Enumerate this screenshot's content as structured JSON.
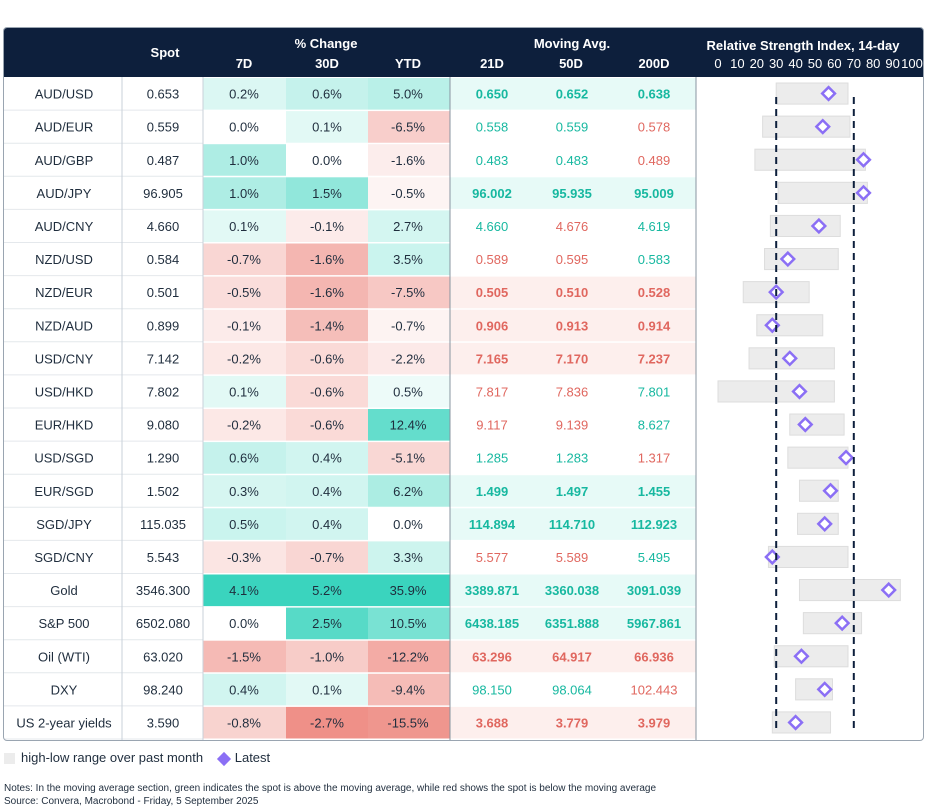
{
  "header": {
    "spot": "Spot",
    "pct_change": "% Change",
    "moving_avg": "Moving Avg.",
    "rsi_title": "Relative Strength Index, 14-day",
    "sub": [
      "7D",
      "30D",
      "YTD",
      "21D",
      "50D",
      "200D"
    ],
    "rsi_ticks": [
      "0",
      "10",
      "20",
      "30",
      "40",
      "50",
      "60",
      "70",
      "80",
      "90",
      "100"
    ]
  },
  "legend": {
    "range": "high-low range over past month",
    "latest": "Latest"
  },
  "notes": {
    "line1": "Notes: In the moving average section, green indicates the spot is above the moving average, while red shows the spot is below the moving average",
    "line2": "Source: Convera, Macrobond - Friday, 5 September 2025"
  },
  "colors": {
    "header": "#0d1f3c",
    "green_text": "#17b8a0",
    "red_text": "#e0675f",
    "marker": "#8b6ff5",
    "range_bar": "#ececec"
  },
  "chart_data": {
    "type": "table",
    "columns": [
      "Spot",
      "7D",
      "30D",
      "YTD",
      "21D",
      "50D",
      "200D",
      "RSI"
    ],
    "rsi_reference_lines": [
      30,
      70
    ],
    "rows": [
      {
        "name": "AUD/USD",
        "spot": "0.653",
        "d7": "0.2%",
        "d30": "0.6%",
        "ytd": "5.0%",
        "m21": "0.650",
        "m50": "0.652",
        "m200": "0.638",
        "rsi": 57,
        "lo": 30,
        "hi": 67
      },
      {
        "name": "AUD/EUR",
        "spot": "0.559",
        "d7": "0.0%",
        "d30": "0.1%",
        "ytd": "-6.5%",
        "m21": "0.558",
        "m50": "0.559",
        "m200": "0.578",
        "rsi": 54,
        "lo": 23,
        "hi": 68
      },
      {
        "name": "AUD/GBP",
        "spot": "0.487",
        "d7": "1.0%",
        "d30": "0.0%",
        "ytd": "-1.6%",
        "m21": "0.483",
        "m50": "0.483",
        "m200": "0.489",
        "rsi": 75,
        "lo": 19,
        "hi": 76
      },
      {
        "name": "AUD/JPY",
        "spot": "96.905",
        "d7": "1.0%",
        "d30": "1.5%",
        "ytd": "-0.5%",
        "m21": "96.002",
        "m50": "95.935",
        "m200": "95.009",
        "rsi": 75,
        "lo": 31,
        "hi": 77
      },
      {
        "name": "AUD/CNY",
        "spot": "4.660",
        "d7": "0.1%",
        "d30": "-0.1%",
        "ytd": "2.7%",
        "m21": "4.660",
        "m50": "4.676",
        "m200": "4.619",
        "rsi": 52,
        "lo": 27,
        "hi": 63
      },
      {
        "name": "NZD/USD",
        "spot": "0.584",
        "d7": "-0.7%",
        "d30": "-1.6%",
        "ytd": "3.5%",
        "m21": "0.589",
        "m50": "0.595",
        "m200": "0.583",
        "rsi": 36,
        "lo": 24,
        "hi": 62
      },
      {
        "name": "NZD/EUR",
        "spot": "0.501",
        "d7": "-0.5%",
        "d30": "-1.6%",
        "ytd": "-7.5%",
        "m21": "0.505",
        "m50": "0.510",
        "m200": "0.528",
        "rsi": 30,
        "lo": 13,
        "hi": 47
      },
      {
        "name": "NZD/AUD",
        "spot": "0.899",
        "d7": "-0.1%",
        "d30": "-1.4%",
        "ytd": "-0.7%",
        "m21": "0.906",
        "m50": "0.913",
        "m200": "0.914",
        "rsi": 28,
        "lo": 20,
        "hi": 54
      },
      {
        "name": "USD/CNY",
        "spot": "7.142",
        "d7": "-0.2%",
        "d30": "-0.6%",
        "ytd": "-2.2%",
        "m21": "7.165",
        "m50": "7.170",
        "m200": "7.237",
        "rsi": 37,
        "lo": 16,
        "hi": 60
      },
      {
        "name": "USD/HKD",
        "spot": "7.802",
        "d7": "0.1%",
        "d30": "-0.6%",
        "ytd": "0.5%",
        "m21": "7.817",
        "m50": "7.836",
        "m200": "7.801",
        "rsi": 42,
        "lo": 0,
        "hi": 60
      },
      {
        "name": "EUR/HKD",
        "spot": "9.080",
        "d7": "-0.2%",
        "d30": "-0.6%",
        "ytd": "12.4%",
        "m21": "9.117",
        "m50": "9.139",
        "m200": "8.627",
        "rsi": 45,
        "lo": 37,
        "hi": 65
      },
      {
        "name": "USD/SGD",
        "spot": "1.290",
        "d7": "0.6%",
        "d30": "0.4%",
        "ytd": "-5.1%",
        "m21": "1.285",
        "m50": "1.283",
        "m200": "1.317",
        "rsi": 66,
        "lo": 36,
        "hi": 67
      },
      {
        "name": "EUR/SGD",
        "spot": "1.502",
        "d7": "0.3%",
        "d30": "0.4%",
        "ytd": "6.2%",
        "m21": "1.499",
        "m50": "1.497",
        "m200": "1.455",
        "rsi": 58,
        "lo": 42,
        "hi": 62
      },
      {
        "name": "SGD/JPY",
        "spot": "115.035",
        "d7": "0.5%",
        "d30": "0.4%",
        "ytd": "0.0%",
        "m21": "114.894",
        "m50": "114.710",
        "m200": "112.923",
        "rsi": 55,
        "lo": 41,
        "hi": 62
      },
      {
        "name": "SGD/CNY",
        "spot": "5.543",
        "d7": "-0.3%",
        "d30": "-0.7%",
        "ytd": "3.3%",
        "m21": "5.577",
        "m50": "5.589",
        "m200": "5.495",
        "rsi": 28,
        "lo": 26,
        "hi": 67
      },
      {
        "name": "Gold",
        "spot": "3546.300",
        "d7": "4.1%",
        "d30": "5.2%",
        "ytd": "35.9%",
        "m21": "3389.871",
        "m50": "3360.038",
        "m200": "3091.039",
        "rsi": 88,
        "lo": 42,
        "hi": 94
      },
      {
        "name": "S&P 500",
        "spot": "6502.080",
        "d7": "0.0%",
        "d30": "2.5%",
        "ytd": "10.5%",
        "m21": "6438.185",
        "m50": "6351.888",
        "m200": "5967.861",
        "rsi": 64,
        "lo": 44,
        "hi": 74
      },
      {
        "name": "Oil (WTI)",
        "spot": "63.020",
        "d7": "-1.5%",
        "d30": "-1.0%",
        "ytd": "-12.2%",
        "m21": "63.296",
        "m50": "64.917",
        "m200": "66.936",
        "rsi": 43,
        "lo": 29,
        "hi": 67
      },
      {
        "name": "DXY",
        "spot": "98.240",
        "d7": "0.4%",
        "d30": "0.1%",
        "ytd": "-9.4%",
        "m21": "98.150",
        "m50": "98.064",
        "m200": "102.443",
        "rsi": 55,
        "lo": 40,
        "hi": 59
      },
      {
        "name": "US 2-year yields",
        "spot": "3.590",
        "d7": "-0.8%",
        "d30": "-2.7%",
        "ytd": "-15.5%",
        "m21": "3.688",
        "m50": "3.779",
        "m200": "3.979",
        "rsi": 40,
        "lo": 28,
        "hi": 58
      }
    ]
  }
}
